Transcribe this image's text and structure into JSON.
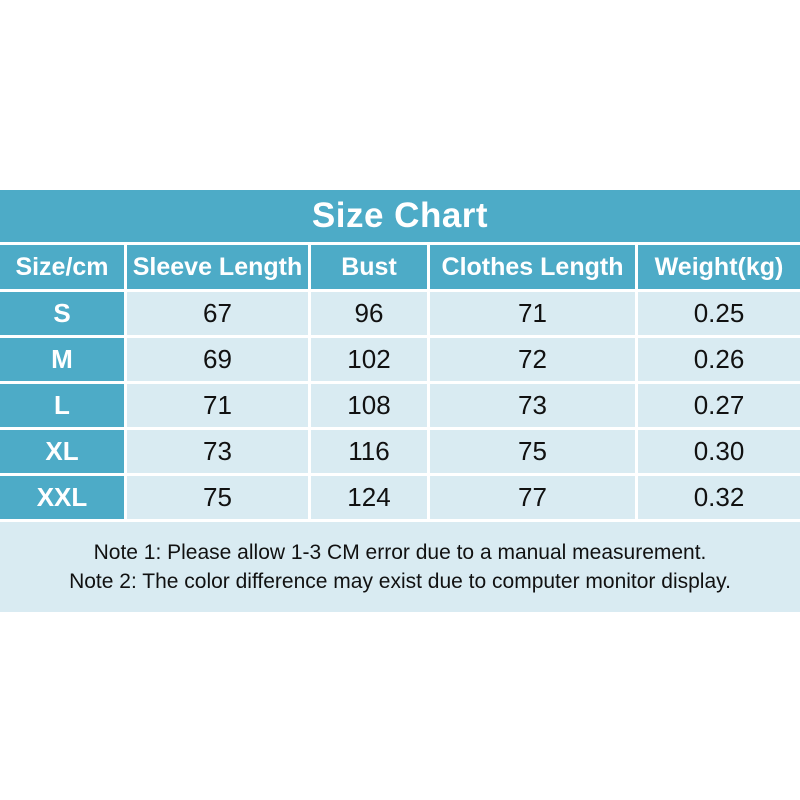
{
  "chart_data": {
    "type": "table",
    "title": "Size Chart",
    "columns": [
      "Size/cm",
      "Sleeve Length",
      "Bust",
      "Clothes Length",
      "Weight(kg)"
    ],
    "rows": [
      [
        "S",
        "67",
        "96",
        "71",
        "0.25"
      ],
      [
        "M",
        "69",
        "102",
        "72",
        "0.26"
      ],
      [
        "L",
        "71",
        "108",
        "73",
        "0.27"
      ],
      [
        "XL",
        "73",
        "116",
        "75",
        "0.30"
      ],
      [
        "XXL",
        "75",
        "124",
        "77",
        "0.32"
      ]
    ],
    "notes": [
      "Note 1: Please allow 1-3 CM error due to a manual measurement.",
      "Note 2: The color difference may exist due to computer monitor display."
    ],
    "layout_hints": {
      "header_position": "top",
      "grid": "white 3px separators",
      "notes_position": "bottom merged row"
    }
  },
  "colors": {
    "accent_teal": "#4dabc7",
    "cell_light_blue": "#d9ebf2",
    "header_text": "#ffffff",
    "body_text": "#111111",
    "page_background": "#ffffff"
  }
}
